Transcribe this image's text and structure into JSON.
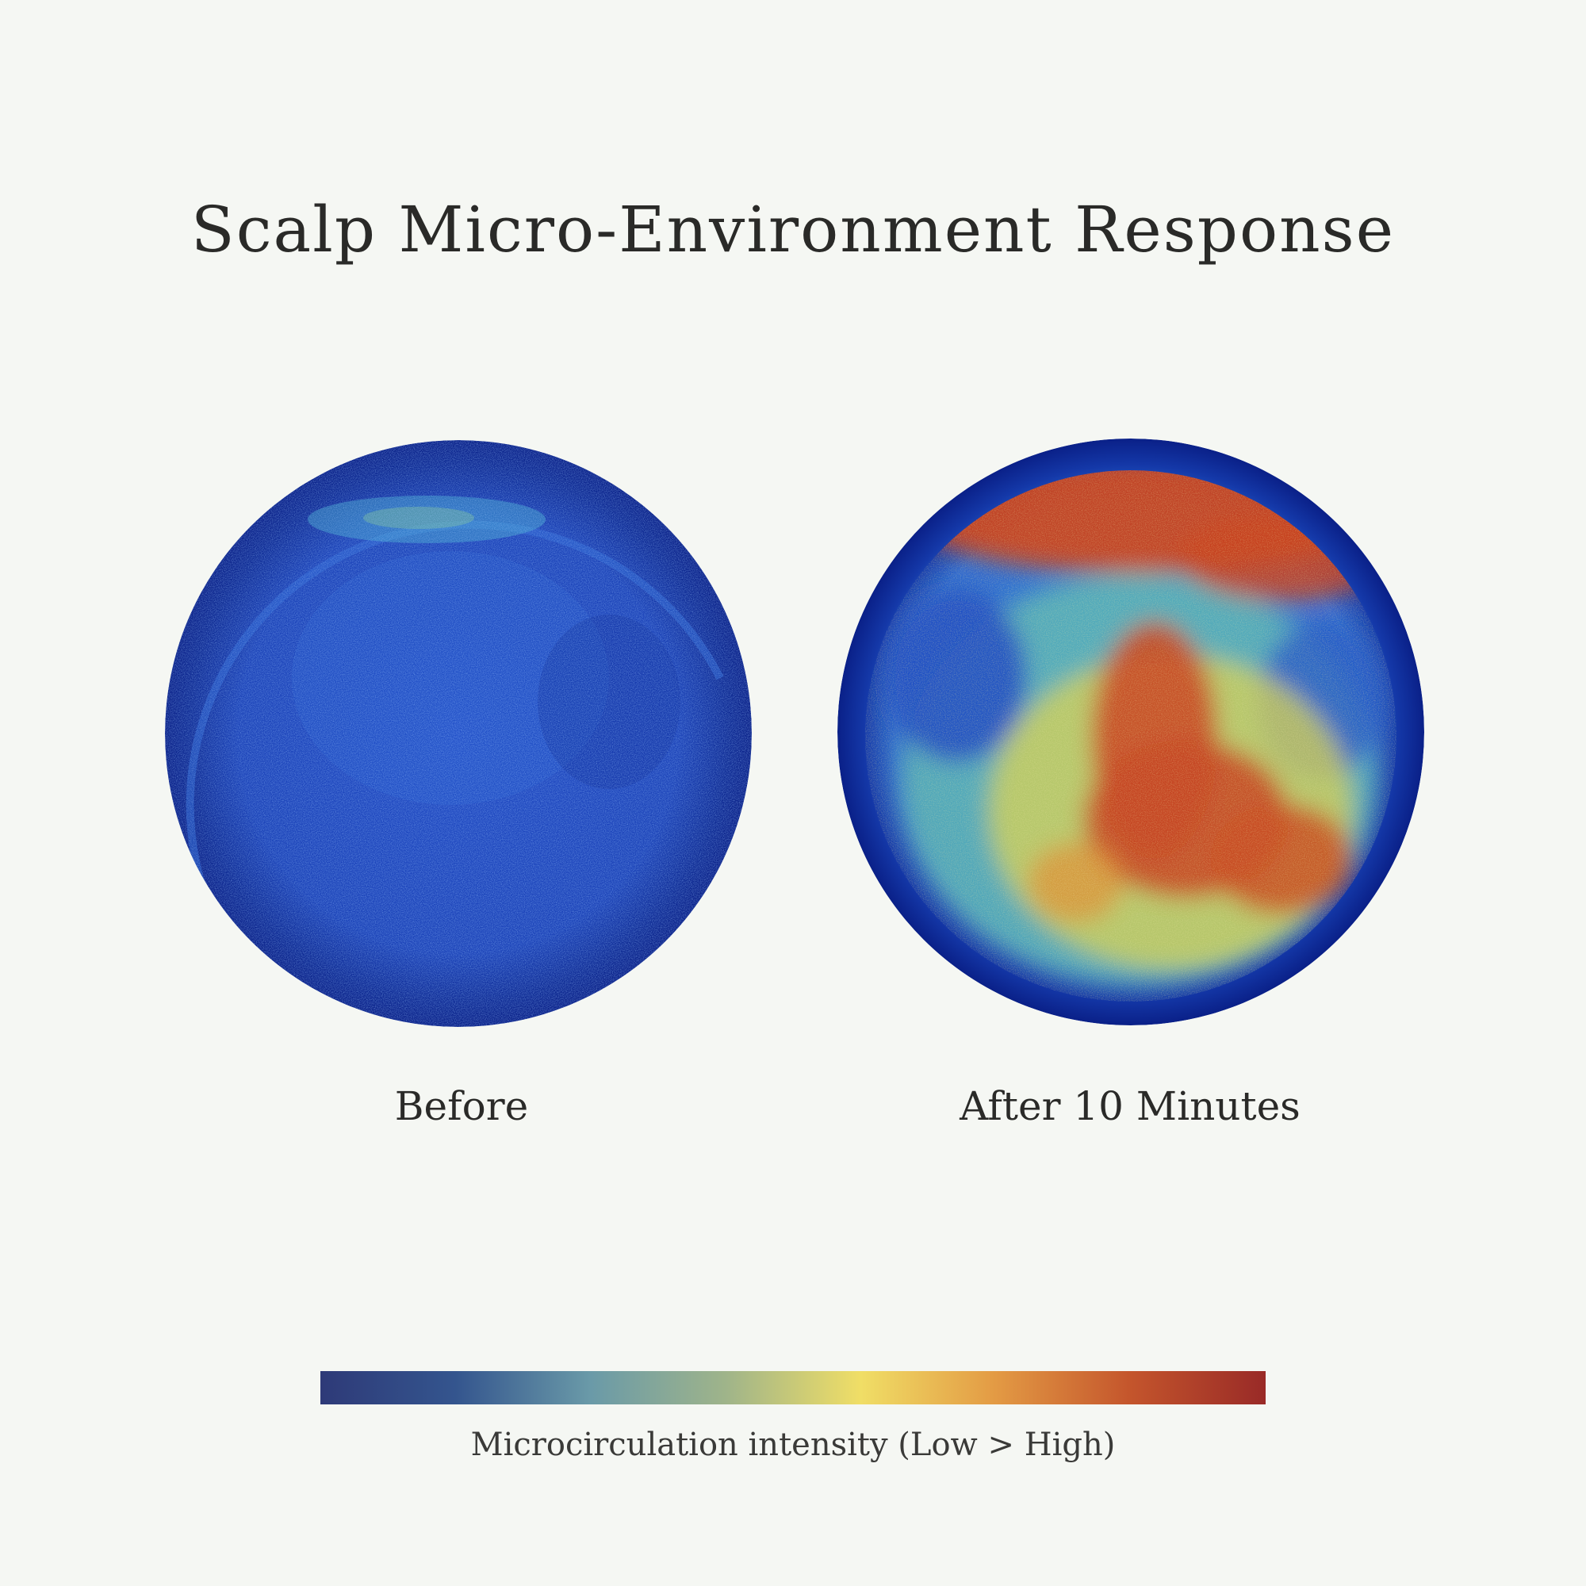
{
  "title": "Scalp Micro-Environment Response",
  "panels": [
    {
      "label": "Before",
      "intensity": "low"
    },
    {
      "label": "After 10 Minutes",
      "intensity": "high"
    }
  ],
  "colorbar": {
    "caption": "Microcirculation intensity (Low > High)",
    "colors": [
      "#2e3a78",
      "#34558e",
      "#6a9aa8",
      "#9fb48a",
      "#f0de66",
      "#e39a44",
      "#c4552c",
      "#992a27"
    ]
  }
}
